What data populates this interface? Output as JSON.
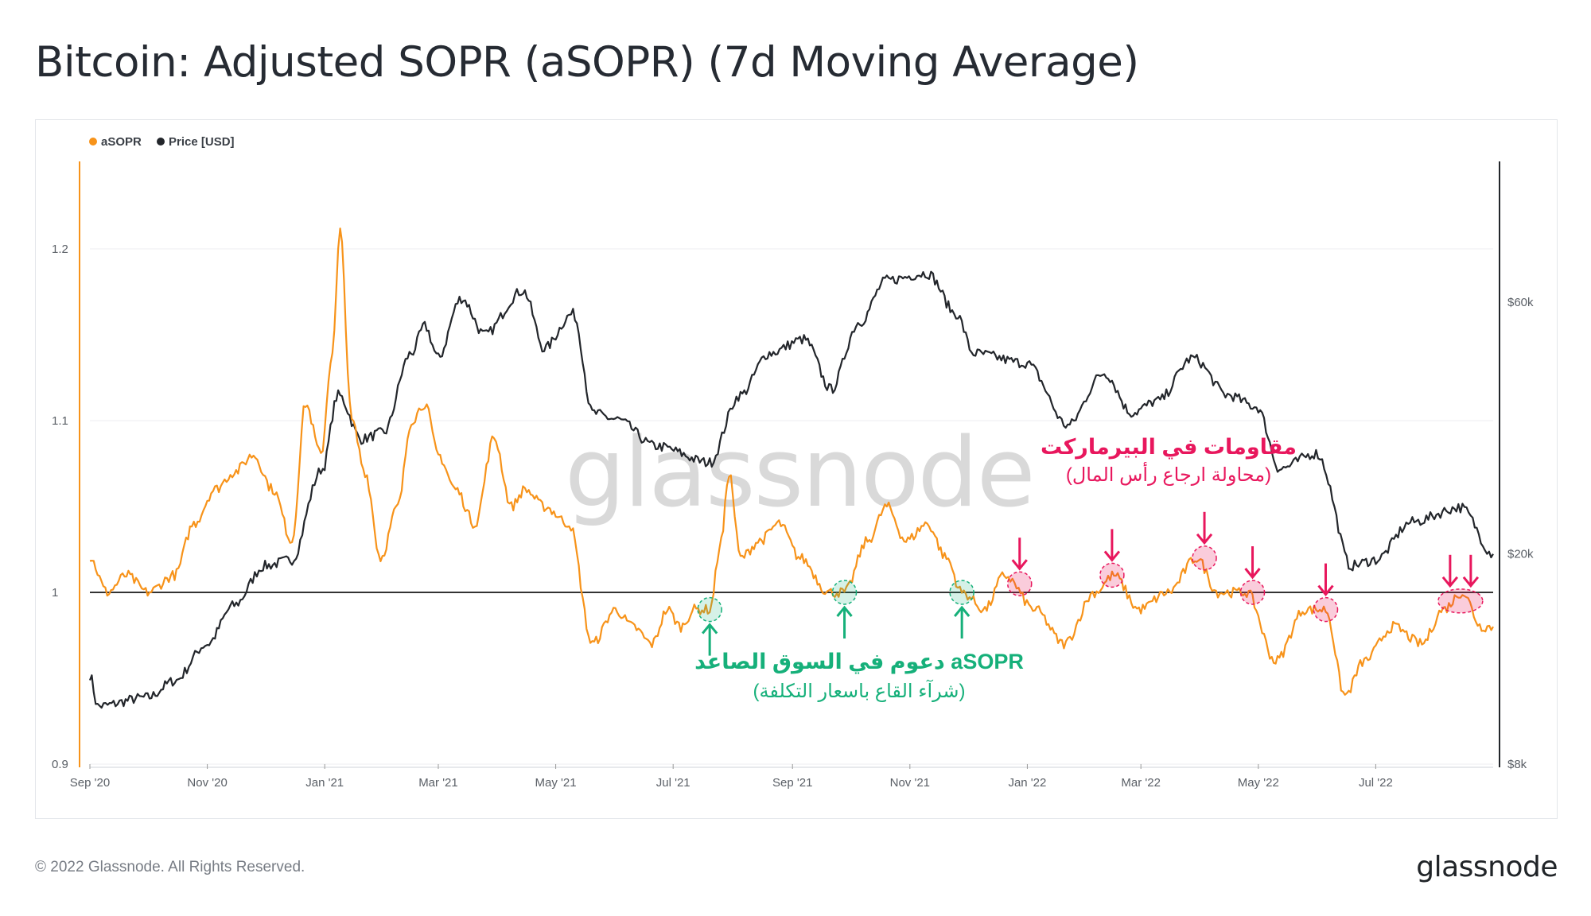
{
  "title": "Bitcoin: Adjusted SOPR (aSOPR) (7d Moving Average)",
  "footer": {
    "copyright": "© 2022 Glassnode. All Rights Reserved.",
    "logo": "glassnode"
  },
  "watermark": "glassnode",
  "colors": {
    "asopr": "#f7931a",
    "price": "#23262b",
    "support": "#16b07a",
    "resistance": "#e8175d",
    "grid": "#eceef1",
    "baseline": "#333333"
  },
  "chart_data": {
    "type": "line",
    "legend": [
      {
        "name": "aSOPR",
        "color": "#f7931a"
      },
      {
        "name": "Price [USD]",
        "color": "#23262b"
      }
    ],
    "legend_position": "top-left",
    "x_ticks": [
      "Sep '20",
      "Nov '20",
      "Jan '21",
      "Mar '21",
      "May '21",
      "Jul '21",
      "Sep '21",
      "Nov '21",
      "Jan '22",
      "Mar '22",
      "May '22",
      "Jul '22"
    ],
    "x_range": [
      "2020-09-01",
      "2022-08-31"
    ],
    "y_left": {
      "label": "",
      "ticks": [
        "0.9",
        "1",
        "1.1",
        "1.2"
      ],
      "range": [
        0.9,
        1.25
      ]
    },
    "y_right": {
      "label": "",
      "scale": "log",
      "ticks": [
        "$8k",
        "$20k",
        "$60k"
      ],
      "range": [
        8000,
        110000
      ]
    },
    "baseline": 1.0,
    "grid": true,
    "series": [
      {
        "name": "aSOPR",
        "axis": "left",
        "points": [
          [
            "2020-09-01",
            1.02
          ],
          [
            "2020-09-10",
            1.0
          ],
          [
            "2020-09-20",
            1.01
          ],
          [
            "2020-10-01",
            1.0
          ],
          [
            "2020-10-15",
            1.01
          ],
          [
            "2020-10-25",
            1.04
          ],
          [
            "2020-11-05",
            1.06
          ],
          [
            "2020-11-15",
            1.07
          ],
          [
            "2020-11-25",
            1.08
          ],
          [
            "2020-12-05",
            1.06
          ],
          [
            "2020-12-15",
            1.03
          ],
          [
            "2020-12-22",
            1.11
          ],
          [
            "2020-12-30",
            1.08
          ],
          [
            "2021-01-05",
            1.14
          ],
          [
            "2021-01-09",
            1.21
          ],
          [
            "2021-01-15",
            1.1
          ],
          [
            "2021-01-22",
            1.07
          ],
          [
            "2021-01-30",
            1.02
          ],
          [
            "2021-02-08",
            1.05
          ],
          [
            "2021-02-15",
            1.1
          ],
          [
            "2021-02-22",
            1.11
          ],
          [
            "2021-03-01",
            1.08
          ],
          [
            "2021-03-10",
            1.06
          ],
          [
            "2021-03-20",
            1.04
          ],
          [
            "2021-03-30",
            1.09
          ],
          [
            "2021-04-08",
            1.05
          ],
          [
            "2021-04-15",
            1.06
          ],
          [
            "2021-04-25",
            1.05
          ],
          [
            "2021-05-08",
            1.04
          ],
          [
            "2021-05-20",
            0.97
          ],
          [
            "2021-06-01",
            0.99
          ],
          [
            "2021-06-10",
            0.98
          ],
          [
            "2021-06-20",
            0.97
          ],
          [
            "2021-06-28",
            0.99
          ],
          [
            "2021-07-05",
            0.98
          ],
          [
            "2021-07-12",
            0.99
          ],
          [
            "2021-07-20",
            0.99
          ],
          [
            "2021-07-26",
            1.03
          ],
          [
            "2021-07-30",
            1.07
          ],
          [
            "2021-08-05",
            1.02
          ],
          [
            "2021-08-15",
            1.03
          ],
          [
            "2021-08-25",
            1.04
          ],
          [
            "2021-09-05",
            1.02
          ],
          [
            "2021-09-20",
            1.0
          ],
          [
            "2021-09-28",
            1.0
          ],
          [
            "2021-10-10",
            1.03
          ],
          [
            "2021-10-20",
            1.05
          ],
          [
            "2021-10-30",
            1.03
          ],
          [
            "2021-11-10",
            1.04
          ],
          [
            "2021-11-20",
            1.02
          ],
          [
            "2021-11-28",
            1.0
          ],
          [
            "2021-12-10",
            0.99
          ],
          [
            "2021-12-20",
            1.01
          ],
          [
            "2022-01-05",
            0.99
          ],
          [
            "2022-01-20",
            0.97
          ],
          [
            "2022-02-05",
            1.0
          ],
          [
            "2022-02-15",
            1.01
          ],
          [
            "2022-02-28",
            0.99
          ],
          [
            "2022-03-15",
            1.0
          ],
          [
            "2022-03-30",
            1.02
          ],
          [
            "2022-04-10",
            1.0
          ],
          [
            "2022-04-25",
            1.0
          ],
          [
            "2022-05-10",
            0.96
          ],
          [
            "2022-05-25",
            0.99
          ],
          [
            "2022-06-05",
            0.99
          ],
          [
            "2022-06-15",
            0.94
          ],
          [
            "2022-06-25",
            0.96
          ],
          [
            "2022-07-10",
            0.98
          ],
          [
            "2022-07-25",
            0.97
          ],
          [
            "2022-08-05",
            0.99
          ],
          [
            "2022-08-15",
            1.0
          ],
          [
            "2022-08-25",
            0.98
          ],
          [
            "2022-08-31",
            0.98
          ]
        ]
      },
      {
        "name": "Price [USD]",
        "axis": "right",
        "points": [
          [
            "2020-09-01",
            11800
          ],
          [
            "2020-09-05",
            10300
          ],
          [
            "2020-10-01",
            10700
          ],
          [
            "2020-10-15",
            11500
          ],
          [
            "2020-11-01",
            13500
          ],
          [
            "2020-11-15",
            16000
          ],
          [
            "2020-12-01",
            19000
          ],
          [
            "2020-12-15",
            19500
          ],
          [
            "2020-12-31",
            29000
          ],
          [
            "2021-01-08",
            40000
          ],
          [
            "2021-01-20",
            33000
          ],
          [
            "2021-02-01",
            34000
          ],
          [
            "2021-02-15",
            48000
          ],
          [
            "2021-02-22",
            54000
          ],
          [
            "2021-03-01",
            47000
          ],
          [
            "2021-03-13",
            61000
          ],
          [
            "2021-03-25",
            52000
          ],
          [
            "2021-04-14",
            63000
          ],
          [
            "2021-04-25",
            49000
          ],
          [
            "2021-05-10",
            57000
          ],
          [
            "2021-05-20",
            37000
          ],
          [
            "2021-06-01",
            36000
          ],
          [
            "2021-06-22",
            32000
          ],
          [
            "2021-07-20",
            29800
          ],
          [
            "2021-08-05",
            40000
          ],
          [
            "2021-08-20",
            48000
          ],
          [
            "2021-09-07",
            51000
          ],
          [
            "2021-09-21",
            41000
          ],
          [
            "2021-10-06",
            55000
          ],
          [
            "2021-10-20",
            66000
          ],
          [
            "2021-11-10",
            68000
          ],
          [
            "2021-11-25",
            57000
          ],
          [
            "2021-12-04",
            48000
          ],
          [
            "2021-12-31",
            46000
          ],
          [
            "2022-01-22",
            35000
          ],
          [
            "2022-02-10",
            44000
          ],
          [
            "2022-02-24",
            37000
          ],
          [
            "2022-03-10",
            39000
          ],
          [
            "2022-03-28",
            47000
          ],
          [
            "2022-04-15",
            40000
          ],
          [
            "2022-04-30",
            38000
          ],
          [
            "2022-05-12",
            29000
          ],
          [
            "2022-05-31",
            31000
          ],
          [
            "2022-06-18",
            19000
          ],
          [
            "2022-07-01",
            19500
          ],
          [
            "2022-07-20",
            23000
          ],
          [
            "2022-08-14",
            24500
          ],
          [
            "2022-08-31",
            20000
          ]
        ]
      }
    ],
    "support_markers": [
      {
        "date": "2021-07-20",
        "value": 0.99
      },
      {
        "date": "2021-09-28",
        "value": 1.0
      },
      {
        "date": "2021-11-28",
        "value": 1.0
      }
    ],
    "resistance_markers": [
      {
        "date": "2021-12-28",
        "value": 1.005
      },
      {
        "date": "2022-02-14",
        "value": 1.01
      },
      {
        "date": "2022-04-03",
        "value": 1.02
      },
      {
        "date": "2022-04-28",
        "value": 1.0
      },
      {
        "date": "2022-06-05",
        "value": 0.99
      },
      {
        "date": "2022-08-14",
        "value": 0.995
      }
    ],
    "annotations": {
      "support": {
        "title": "دعوم في السوق الصاعد aSOPR",
        "subtitle": "(شرآء القاع باسعار التكلفة)"
      },
      "resistance": {
        "title": "مقاومات في البيرماركت",
        "subtitle": "(محاولة ارجاع رأس المال)"
      }
    }
  }
}
